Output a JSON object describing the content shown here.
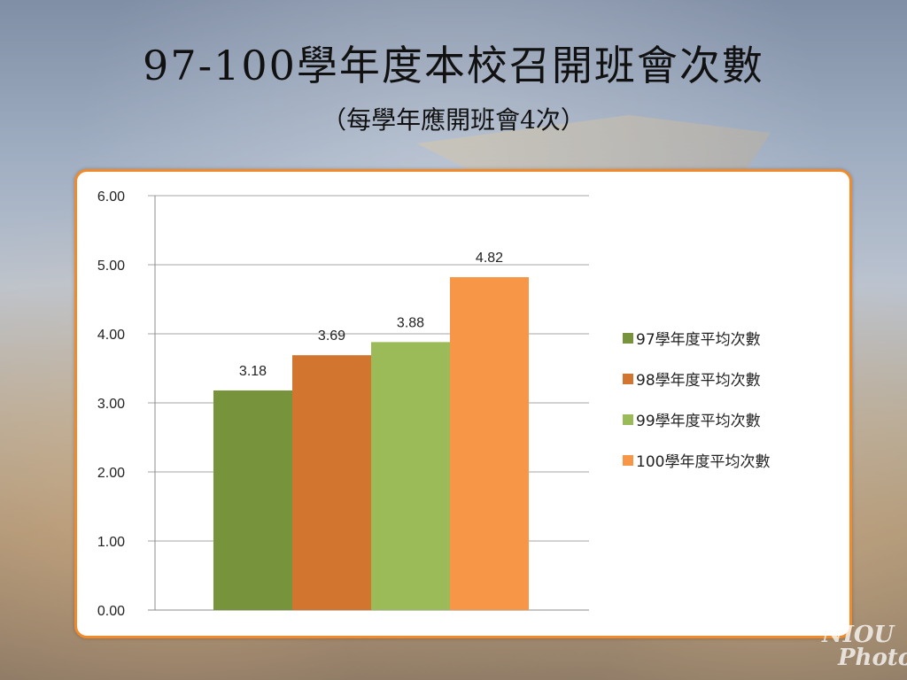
{
  "slide": {
    "title": "97-100學年度本校召開班會次數",
    "subtitle": "（每學年應開班會4次）"
  },
  "watermark": {
    "line1": "NIOU",
    "line2": "Photo"
  },
  "colors": {
    "accent_border": "#f08a2a",
    "series": [
      "#77933c",
      "#d2762f",
      "#9bbb59",
      "#f79646"
    ]
  },
  "chart_data": {
    "type": "bar",
    "title": "",
    "xlabel": "",
    "ylabel": "",
    "ylim": [
      0,
      6
    ],
    "yticks": [
      0,
      1,
      2,
      3,
      4,
      5,
      6
    ],
    "ytick_labels": [
      "0.00",
      "1.00",
      "2.00",
      "3.00",
      "4.00",
      "5.00",
      "6.00"
    ],
    "grid": true,
    "legend_position": "right",
    "categories": [
      ""
    ],
    "series": [
      {
        "name": "97學年度平均次數",
        "values": [
          3.18
        ],
        "label": "3.18",
        "color": "#77933c"
      },
      {
        "name": "98學年度平均次數",
        "values": [
          3.69
        ],
        "label": "3.69",
        "color": "#d2762f"
      },
      {
        "name": "99學年度平均次數",
        "values": [
          3.88
        ],
        "label": "3.88",
        "color": "#9bbb59"
      },
      {
        "name": "100學年度平均次數",
        "values": [
          4.82
        ],
        "label": "4.82",
        "color": "#f79646"
      }
    ]
  }
}
